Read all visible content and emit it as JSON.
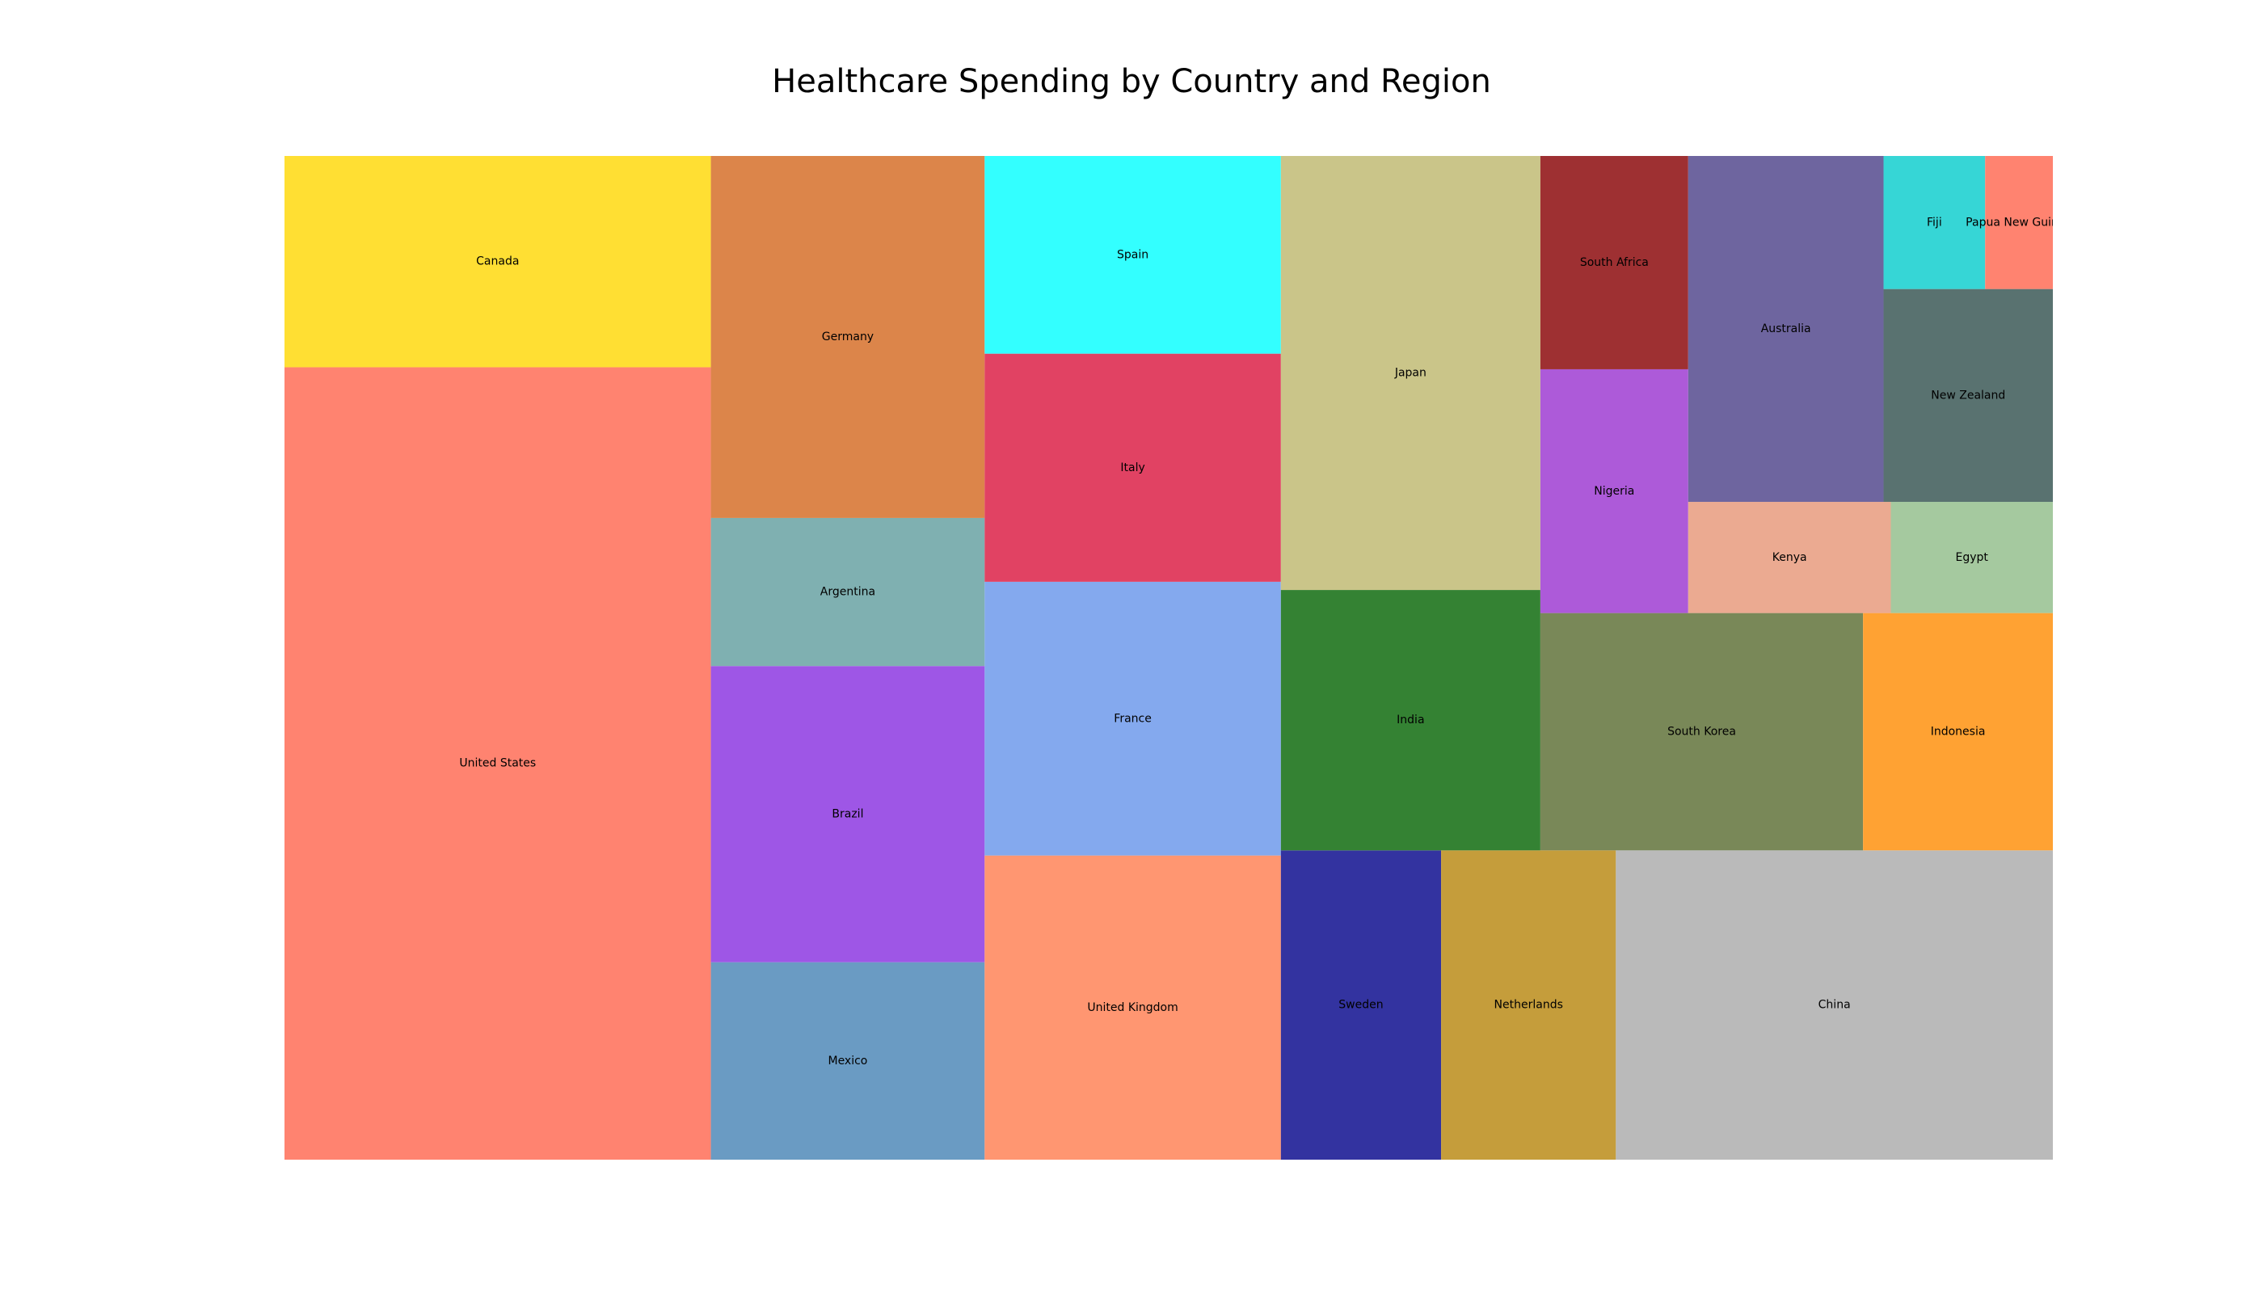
{
  "chart_data": {
    "type": "treemap",
    "title": "Healthcare Spending by Country and Region",
    "value_note": "values estimated from relative tile areas",
    "items": [
      {
        "label": "United States",
        "value": 45.0,
        "color": "#FF8370"
      },
      {
        "label": "Canada",
        "value": 12.0,
        "color": "#FFDF33"
      },
      {
        "label": "Mexico",
        "value": 7.2,
        "color": "#6A9BC3"
      },
      {
        "label": "Brazil",
        "value": 10.8,
        "color": "#9E56E6"
      },
      {
        "label": "Argentina",
        "value": 5.4,
        "color": "#7FB0B1"
      },
      {
        "label": "Germany",
        "value": 13.2,
        "color": "#DC854A"
      },
      {
        "label": "United Kingdom",
        "value": 12.0,
        "color": "#FF9671"
      },
      {
        "label": "France",
        "value": 10.8,
        "color": "#84A9EE"
      },
      {
        "label": "Italy",
        "value": 9.0,
        "color": "#E14263"
      },
      {
        "label": "Spain",
        "value": 7.8,
        "color": "#33FFFF"
      },
      {
        "label": "Sweden",
        "value": 6.6,
        "color": "#3333A0"
      },
      {
        "label": "Netherlands",
        "value": 7.2,
        "color": "#C59D3B"
      },
      {
        "label": "China",
        "value": 18.0,
        "color": "#BABABA"
      },
      {
        "label": "India",
        "value": 9.0,
        "color": "#348233"
      },
      {
        "label": "Japan",
        "value": 15.0,
        "color": "#CAC589"
      },
      {
        "label": "South Korea",
        "value": 10.2,
        "color": "#798858"
      },
      {
        "label": "Indonesia",
        "value": 6.0,
        "color": "#FFA233"
      },
      {
        "label": "Nigeria",
        "value": 4.8,
        "color": "#AD5AD9"
      },
      {
        "label": "South Africa",
        "value": 4.2,
        "color": "#9E3032"
      },
      {
        "label": "Kenya",
        "value": 3.0,
        "color": "#EBAA91"
      },
      {
        "label": "Egypt",
        "value": 2.4,
        "color": "#A5C99F"
      },
      {
        "label": "Australia",
        "value": 9.0,
        "color": "#6E659F"
      },
      {
        "label": "New Zealand",
        "value": 4.8,
        "color": "#597270"
      },
      {
        "label": "Fiji",
        "value": 1.8,
        "color": "#36D6D6"
      },
      {
        "label": "Papua New Guinea",
        "value": 1.2,
        "color": "#FF8370"
      }
    ]
  }
}
